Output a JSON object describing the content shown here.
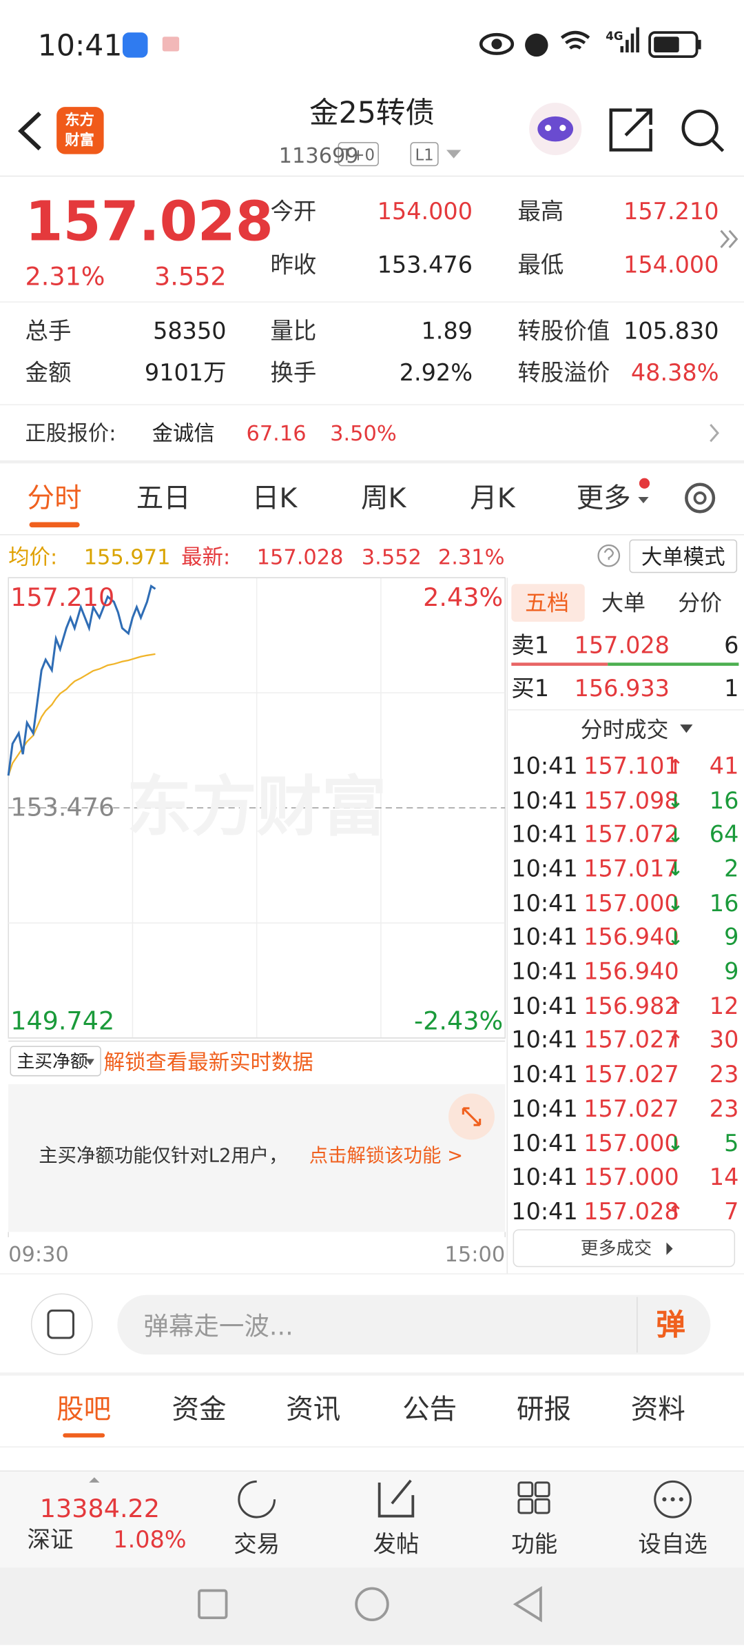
{
  "status_bar": {
    "time": "10:41",
    "network": "4G"
  },
  "header": {
    "logo": [
      "东方",
      "财富"
    ],
    "title": "金25转债",
    "code": "113699",
    "tags": [
      "T+0",
      "L1"
    ]
  },
  "quote": {
    "price": "157.028",
    "change_pct": "2.31%",
    "change": "3.552",
    "fields": [
      {
        "label": "今开",
        "value": "154.000",
        "color": "#e4393c"
      },
      {
        "label": "最高",
        "value": "157.210",
        "color": "#e4393c"
      },
      {
        "label": "昨收",
        "value": "153.476",
        "color": "#222222"
      },
      {
        "label": "最低",
        "value": "154.000",
        "color": "#e4393c"
      }
    ],
    "stats": [
      {
        "label": "总手",
        "value": "58350",
        "color": "#222222"
      },
      {
        "label": "量比",
        "value": "1.89",
        "color": "#222222"
      },
      {
        "label": "转股价值",
        "value": "105.830",
        "color": "#222222"
      },
      {
        "label": "金额",
        "value": "9101万",
        "color": "#222222"
      },
      {
        "label": "换手",
        "value": "2.92%",
        "color": "#222222"
      },
      {
        "label": "转股溢价",
        "value": "48.38%",
        "color": "#e4393c"
      }
    ]
  },
  "underlying": {
    "label": "正股报价:",
    "name": "金诚信",
    "price": "67.16",
    "change_pct": "3.50%"
  },
  "tabs": [
    "分时",
    "五日",
    "日K",
    "周K",
    "月K",
    "更多"
  ],
  "summary": {
    "avg_label": "均价:",
    "avg": "155.971",
    "latest_label": "最新:",
    "latest": "157.028",
    "change": "3.552",
    "change_pct": "2.31%",
    "mode_button": "大单模式"
  },
  "chart_data": {
    "type": "line",
    "watermark": "东方财富",
    "x": [
      0,
      2,
      5,
      7,
      9,
      12,
      14,
      16,
      18,
      21,
      23,
      25,
      28,
      30,
      32,
      35,
      37,
      39,
      41,
      44,
      46,
      48,
      51,
      53,
      55,
      58,
      60,
      62,
      64,
      67,
      69,
      71
    ],
    "series": [
      {
        "color": "#2f6db5",
        "values": [
          154.0,
          154.516,
          154.687,
          154.346,
          154.857,
          154.687,
          155.198,
          155.71,
          155.88,
          155.71,
          156.221,
          156.051,
          156.392,
          156.562,
          156.392,
          156.733,
          156.562,
          156.392,
          156.733,
          156.562,
          156.733,
          156.903,
          156.818,
          156.647,
          156.392,
          156.306,
          156.562,
          156.733,
          156.562,
          156.818,
          157.074,
          157.028
        ]
      },
      {
        "color": "#f0b429",
        "values": [
          154.0,
          154.2,
          154.35,
          154.45,
          154.55,
          154.65,
          154.8,
          154.95,
          155.05,
          155.15,
          155.25,
          155.33,
          155.4,
          155.47,
          155.53,
          155.58,
          155.62,
          155.66,
          155.7,
          155.73,
          155.76,
          155.79,
          155.81,
          155.83,
          155.85,
          155.87,
          155.89,
          155.91,
          155.93,
          155.95,
          155.96,
          155.971
        ]
      }
    ],
    "xlim": [
      0,
      240
    ],
    "xticks": [
      {
        "value": 0,
        "label": "09:30"
      },
      {
        "value": 240,
        "label": "15:00"
      }
    ],
    "ylim": [
      149.742,
      157.21
    ],
    "yticks": [
      {
        "value": 157.21,
        "label": "157.210"
      },
      {
        "value": 153.476,
        "label": "153.476"
      },
      {
        "value": 149.742,
        "label": "149.742"
      }
    ],
    "y2lim": [
      -2.43,
      2.43
    ],
    "y2ticks": [
      {
        "value": 2.43,
        "label": "2.43%"
      },
      {
        "value": -2.43,
        "label": "-2.43%"
      }
    ],
    "grid": true
  },
  "sub_chart": {
    "selector": "主买净额",
    "unlock": "解锁查看最新实时数据",
    "notice": "主买净额功能仅针对L2用户，",
    "notice_link": "点击解锁该功能 >"
  },
  "order_book": {
    "tabs": [
      "五档",
      "大单",
      "分价"
    ],
    "asks": [
      {
        "label": "卖1",
        "price": "157.028",
        "volume": "6"
      }
    ],
    "bids": [
      {
        "label": "买1",
        "price": "156.933",
        "volume": "1"
      }
    ],
    "trades_title": "分时成交",
    "trades": [
      {
        "time": "10:41",
        "price": "157.101",
        "arrow": "↑",
        "side": "buy",
        "volume": "41"
      },
      {
        "time": "10:41",
        "price": "157.098",
        "arrow": "↓",
        "side": "sell",
        "volume": "16"
      },
      {
        "time": "10:41",
        "price": "157.072",
        "arrow": "↓",
        "side": "sell",
        "volume": "64"
      },
      {
        "time": "10:41",
        "price": "157.017",
        "arrow": "↓",
        "side": "sell",
        "volume": "2"
      },
      {
        "time": "10:41",
        "price": "157.000",
        "arrow": "↓",
        "side": "sell",
        "volume": "16"
      },
      {
        "time": "10:41",
        "price": "156.940",
        "arrow": "↓",
        "side": "sell",
        "volume": "9"
      },
      {
        "time": "10:41",
        "price": "156.940",
        "side": "sell",
        "volume": "9"
      },
      {
        "time": "10:41",
        "price": "156.982",
        "arrow": "↑",
        "side": "buy",
        "volume": "12"
      },
      {
        "time": "10:41",
        "price": "157.027",
        "arrow": "↑",
        "side": "buy",
        "volume": "30"
      },
      {
        "time": "10:41",
        "price": "157.027",
        "side": "buy",
        "volume": "23"
      },
      {
        "time": "10:41",
        "price": "157.027",
        "side": "buy",
        "volume": "23"
      },
      {
        "time": "10:41",
        "price": "157.000",
        "arrow": "↓",
        "side": "sell",
        "volume": "5"
      },
      {
        "time": "10:41",
        "price": "157.000",
        "side": "buy",
        "volume": "14"
      },
      {
        "time": "10:41",
        "price": "157.028",
        "arrow": "↑",
        "side": "buy",
        "volume": "7"
      }
    ],
    "more": "更多成交"
  },
  "chat": {
    "placeholder": "弹幕走一波...",
    "button": "弹"
  },
  "bottom_tabs": [
    "股吧",
    "资金",
    "资讯",
    "公告",
    "研报",
    "资料"
  ],
  "index_ticker": {
    "value": "13384.22",
    "name": "深证",
    "change_pct": "1.08%"
  },
  "nav": [
    "交易",
    "发帖",
    "功能",
    "设自选"
  ]
}
